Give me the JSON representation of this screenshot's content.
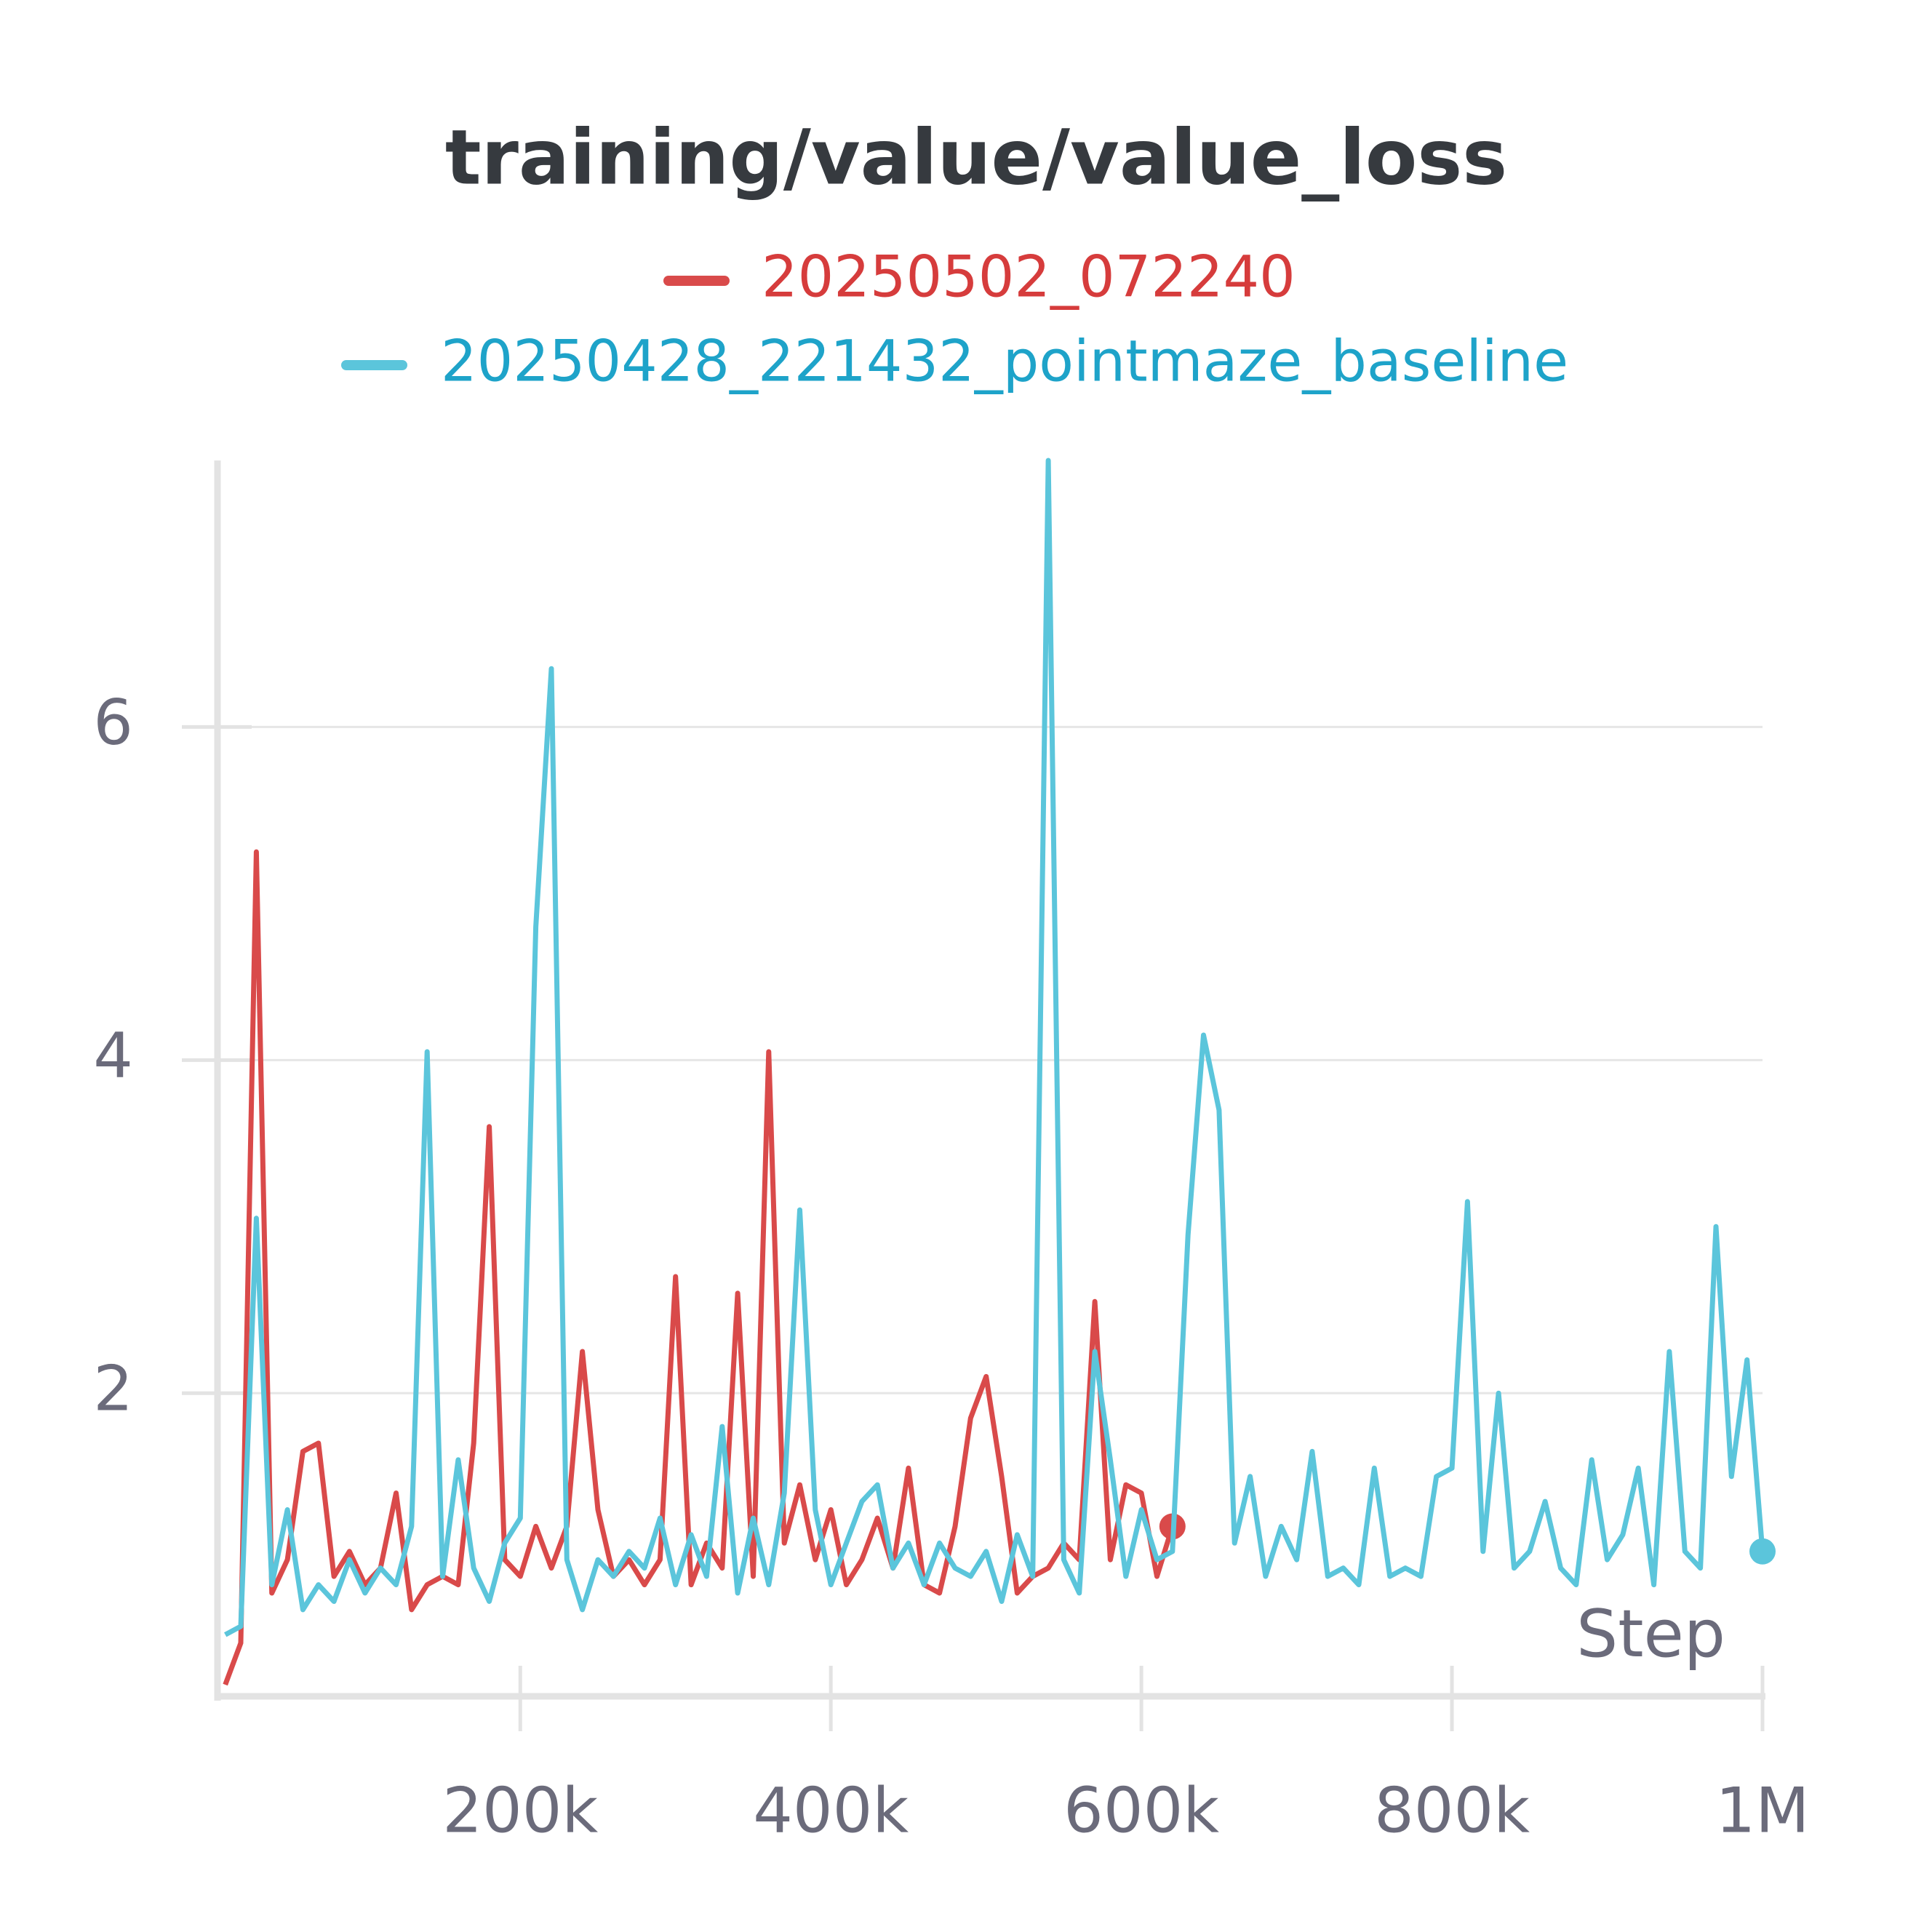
{
  "chart_data": {
    "type": "line",
    "title": "training/value/value_loss",
    "x_label": "Step",
    "x": [
      10000,
      20000,
      30000,
      40000,
      50000,
      60000,
      70000,
      80000,
      90000,
      100000,
      110000,
      120000,
      130000,
      140000,
      150000,
      160000,
      170000,
      180000,
      190000,
      200000,
      210000,
      220000,
      230000,
      240000,
      250000,
      260000,
      270000,
      280000,
      290000,
      300000,
      310000,
      320000,
      330000,
      340000,
      350000,
      360000,
      370000,
      380000,
      390000,
      400000,
      410000,
      420000,
      430000,
      440000,
      450000,
      460000,
      470000,
      480000,
      490000,
      500000,
      510000,
      520000,
      530000,
      540000,
      550000,
      560000,
      570000,
      580000,
      590000,
      600000,
      610000,
      620000,
      630000,
      640000,
      650000,
      660000,
      670000,
      680000,
      690000,
      700000,
      710000,
      720000,
      730000,
      740000,
      750000,
      760000,
      770000,
      780000,
      790000,
      800000,
      810000,
      820000,
      830000,
      840000,
      850000,
      860000,
      870000,
      880000,
      890000,
      900000,
      910000,
      920000,
      930000,
      940000,
      950000,
      960000,
      970000,
      980000,
      990000,
      1000000
    ],
    "series": [
      {
        "name": "20250502_072240",
        "color": "#d94a4a",
        "values": [
          0.25,
          0.5,
          5.25,
          0.8,
          1.0,
          1.65,
          1.7,
          0.9,
          1.05,
          0.85,
          0.95,
          1.4,
          0.7,
          0.85,
          0.9,
          0.85,
          1.7,
          3.6,
          1.0,
          0.9,
          1.2,
          0.95,
          1.2,
          2.25,
          1.3,
          0.9,
          1.0,
          0.85,
          1.0,
          2.7,
          0.85,
          1.1,
          0.95,
          2.6,
          0.9,
          4.05,
          1.1,
          1.45,
          1.0,
          1.3,
          0.85,
          1.0,
          1.25,
          0.95,
          1.55,
          0.85,
          0.8,
          1.2,
          1.85,
          2.1,
          1.5,
          0.8,
          0.9,
          0.95,
          1.1,
          1.0,
          2.55,
          1.0,
          1.45,
          1.4,
          0.9,
          1.2,
          null,
          null,
          null,
          null,
          null,
          null,
          null,
          null,
          null,
          null,
          null,
          null,
          null,
          null,
          null,
          null,
          null,
          null,
          null,
          null,
          null,
          null,
          null,
          null,
          null,
          null,
          null,
          null,
          null,
          null,
          null,
          null,
          null,
          null,
          null,
          null,
          null,
          null
        ]
      },
      {
        "name": "20250428_221432_pointmaze_baseline",
        "color": "#5bc5db",
        "values": [
          0.55,
          0.6,
          3.05,
          0.85,
          1.3,
          0.7,
          0.85,
          0.75,
          1.0,
          0.8,
          0.95,
          0.85,
          1.2,
          4.05,
          0.9,
          1.6,
          0.95,
          0.75,
          1.1,
          1.25,
          4.8,
          6.35,
          1.0,
          0.7,
          1.0,
          0.9,
          1.05,
          0.95,
          1.25,
          0.85,
          1.15,
          0.9,
          1.8,
          0.8,
          1.25,
          0.85,
          1.4,
          3.1,
          1.3,
          0.85,
          1.1,
          1.35,
          1.45,
          0.95,
          1.1,
          0.85,
          1.1,
          0.95,
          0.9,
          1.05,
          0.75,
          1.15,
          0.9,
          7.6,
          1.0,
          0.8,
          2.25,
          1.6,
          0.9,
          1.3,
          1.0,
          1.05,
          2.95,
          4.15,
          3.7,
          1.1,
          1.5,
          0.9,
          1.2,
          1.0,
          1.65,
          0.9,
          0.95,
          0.85,
          1.55,
          0.9,
          0.95,
          0.9,
          1.5,
          1.55,
          3.15,
          1.05,
          2.0,
          0.95,
          1.05,
          1.35,
          0.95,
          0.85,
          1.6,
          1.0,
          1.15,
          1.55,
          0.85,
          2.25,
          1.05,
          0.95,
          3.0,
          1.5,
          2.2,
          1.05
        ]
      }
    ],
    "xlim": [
      5000,
      1000000
    ],
    "ylim": [
      0.18,
      7.6
    ],
    "xticks": [
      {
        "value": 200000,
        "label": "200k"
      },
      {
        "value": 400000,
        "label": "400k"
      },
      {
        "value": 600000,
        "label": "600k"
      },
      {
        "value": 800000,
        "label": "800k"
      },
      {
        "value": 1000000,
        "label": "1M"
      }
    ],
    "yticks": [
      2,
      4,
      6
    ],
    "grid": true
  }
}
